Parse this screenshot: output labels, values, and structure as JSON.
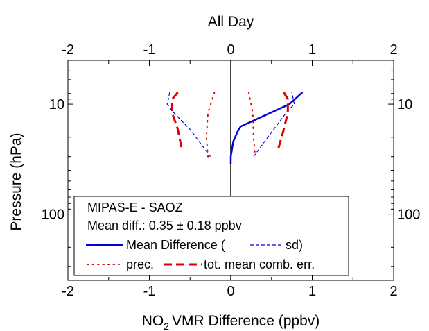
{
  "chart_data": {
    "type": "line",
    "title": "All Day",
    "xlabel": "VMR Difference (ppbv)",
    "xlabel_prefix": "NO",
    "xlabel_subscript": "2",
    "ylabel": "Pressure (hPa)",
    "xlim": [
      -2,
      2
    ],
    "ylim_log": [
      400,
      4
    ],
    "y_scale": "log",
    "grid": false,
    "x_ticks": [
      -2,
      -1,
      0,
      1,
      2
    ],
    "x_tick_labels": [
      "-2",
      "-1",
      "0",
      "1",
      "2"
    ],
    "y_ticks": [
      10,
      100
    ],
    "y_tick_labels": [
      "10",
      "100"
    ],
    "legend_position": "bottom-left",
    "legend": {
      "header": "MIPAS-E - SAOZ",
      "stat_line": "Mean diff.: 0.35 ± 0.18 ppbv",
      "mean_label": "Mean Difference (",
      "sd_label": "sd)",
      "prec_label": "prec.",
      "err_label": "tot. mean comb. err."
    },
    "series": [
      {
        "name": "Mean Difference",
        "color": "#0000dd",
        "style": "solid",
        "points": [
          [
            0.0,
            35
          ],
          [
            0.0,
            30
          ],
          [
            0.03,
            22
          ],
          [
            0.08,
            18
          ],
          [
            0.12,
            16
          ],
          [
            0.72,
            10
          ],
          [
            0.88,
            7.8
          ]
        ]
      },
      {
        "name": "sd",
        "color": "#0000dd",
        "style": "dashed-thin",
        "points": [
          [
            -0.75,
            7.8
          ],
          [
            -0.78,
            10
          ],
          [
            -0.7,
            12
          ],
          [
            -0.5,
            17
          ],
          [
            -0.25,
            30
          ]
        ]
      },
      {
        "name": "sd",
        "color": "#0000dd",
        "style": "dashed-thin",
        "points": [
          [
            0.28,
            30
          ],
          [
            0.5,
            18
          ],
          [
            0.68,
            12
          ],
          [
            0.78,
            10
          ],
          [
            0.75,
            7.8
          ]
        ]
      },
      {
        "name": "prec.",
        "color": "#dd0000",
        "style": "dotted",
        "points": [
          [
            -0.2,
            7.8
          ],
          [
            -0.28,
            12
          ],
          [
            -0.3,
            20
          ],
          [
            -0.28,
            30
          ]
        ]
      },
      {
        "name": "prec.",
        "color": "#dd0000",
        "style": "dotted",
        "points": [
          [
            0.22,
            7.8
          ],
          [
            0.27,
            12
          ],
          [
            0.28,
            20
          ],
          [
            0.3,
            30
          ]
        ]
      },
      {
        "name": "tot. mean comb. err.",
        "color": "#dd0000",
        "style": "dashed-thick",
        "points": [
          [
            -0.65,
            7.8
          ],
          [
            -0.72,
            9
          ],
          [
            -0.72,
            12
          ],
          [
            -0.65,
            17
          ],
          [
            -0.6,
            26
          ]
        ]
      },
      {
        "name": "tot. mean comb. err.",
        "color": "#dd0000",
        "style": "dashed-thick",
        "points": [
          [
            0.65,
            7.8
          ],
          [
            0.7,
            9
          ],
          [
            0.7,
            12
          ],
          [
            0.65,
            17
          ],
          [
            0.58,
            26
          ]
        ]
      }
    ]
  }
}
